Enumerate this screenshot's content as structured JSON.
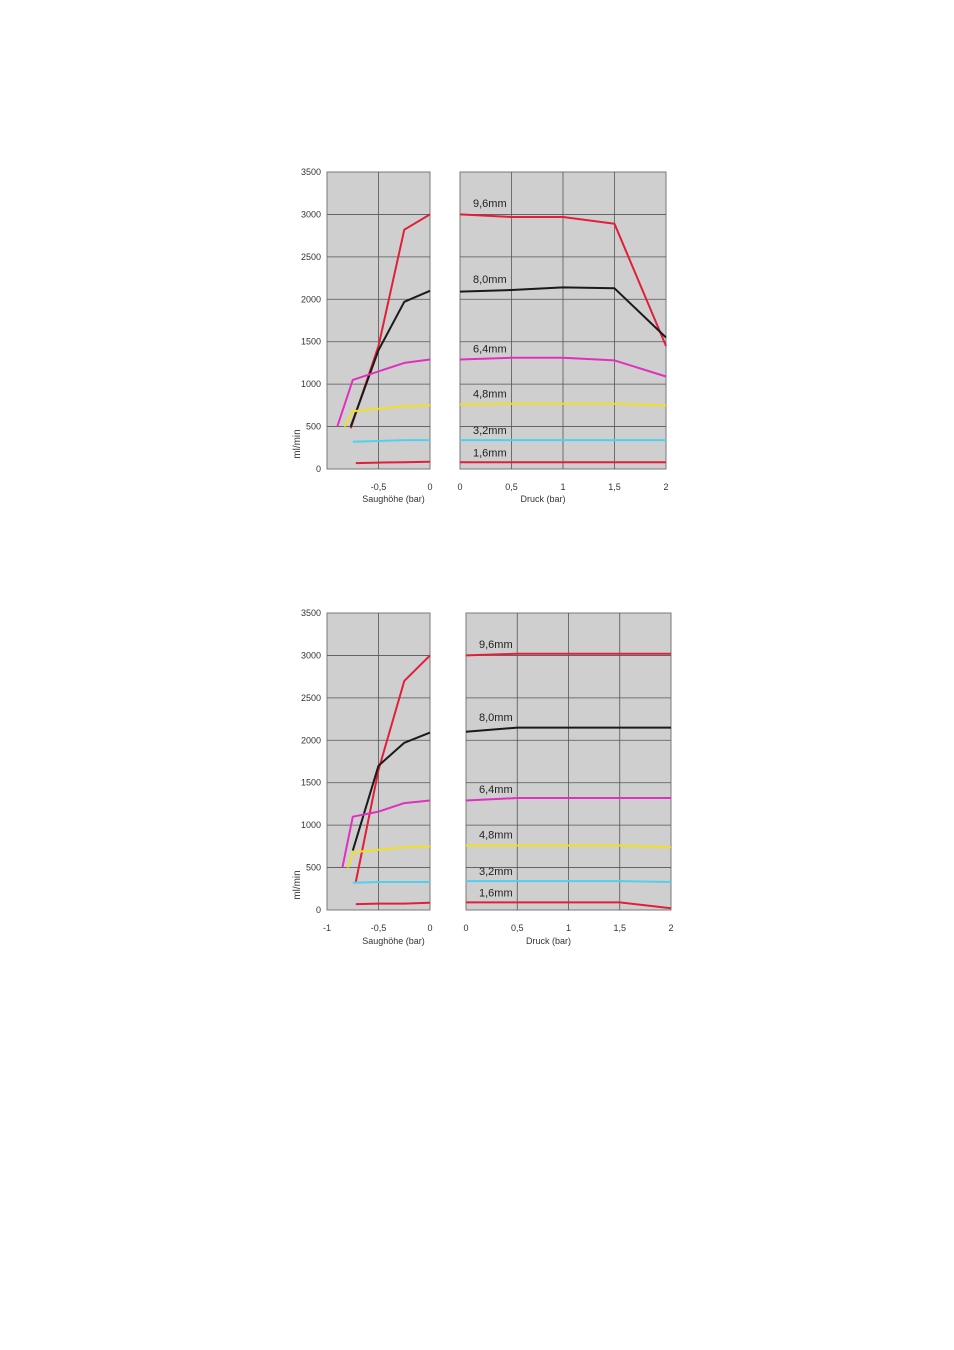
{
  "chart_data": [
    {
      "type": "line",
      "ylabel": "ml/min",
      "ylim": [
        0,
        3500
      ],
      "y_ticks": [
        "0",
        "500",
        "1000",
        "1500",
        "2000",
        "2500",
        "3000",
        "3500"
      ],
      "grid": true,
      "panels": [
        {
          "xlabel": "Saughöhe (bar)",
          "xlim": [
            -1,
            0
          ],
          "x_ticks": [
            {
              "v": -0.5,
              "label": "-0,5"
            },
            {
              "v": 0,
              "label": "0"
            }
          ],
          "series": [
            {
              "color": "#e0203a",
              "points": [
                [
                  -0.77,
                  480
                ],
                [
                  -0.5,
                  1450
                ],
                [
                  -0.25,
                  2820
                ],
                [
                  0,
                  3000
                ]
              ]
            },
            {
              "color": "#1a1a1a",
              "points": [
                [
                  -0.77,
                  500
                ],
                [
                  -0.5,
                  1400
                ],
                [
                  -0.25,
                  1970
                ],
                [
                  0,
                  2100
                ]
              ]
            },
            {
              "color": "#e030c0",
              "points": [
                [
                  -0.9,
                  500
                ],
                [
                  -0.75,
                  1050
                ],
                [
                  -0.5,
                  1150
                ],
                [
                  -0.25,
                  1250
                ],
                [
                  0,
                  1290
                ]
              ]
            },
            {
              "color": "#f0e020",
              "points": [
                [
                  -0.83,
                  500
                ],
                [
                  -0.75,
                  680
                ],
                [
                  -0.5,
                  710
                ],
                [
                  -0.25,
                  740
                ],
                [
                  0,
                  750
                ]
              ]
            },
            {
              "color": "#50d0f0",
              "points": [
                [
                  -0.75,
                  320
                ],
                [
                  -0.5,
                  330
                ],
                [
                  -0.25,
                  340
                ],
                [
                  0,
                  340
                ]
              ]
            },
            {
              "color": "#e0203a",
              "points": [
                [
                  -0.72,
                  70
                ],
                [
                  -0.5,
                  75
                ],
                [
                  -0.25,
                  80
                ],
                [
                  0,
                  85
                ]
              ]
            }
          ]
        },
        {
          "xlabel": "Druck (bar)",
          "xlim": [
            0,
            2
          ],
          "x_ticks": [
            {
              "v": 0,
              "label": "0"
            },
            {
              "v": 0.5,
              "label": "0,5"
            },
            {
              "v": 1,
              "label": "1"
            },
            {
              "v": 1.5,
              "label": "1,5"
            },
            {
              "v": 2,
              "label": "2"
            }
          ],
          "series": [
            {
              "name": "9,6mm",
              "color": "#e0203a",
              "label_y": 3090,
              "points": [
                [
                  0,
                  3000
                ],
                [
                  0.5,
                  2970
                ],
                [
                  1,
                  2970
                ],
                [
                  1.5,
                  2890
                ],
                [
                  2,
                  1450
                ]
              ]
            },
            {
              "name": "8,0mm",
              "color": "#1a1a1a",
              "label_y": 2190,
              "points": [
                [
                  0,
                  2090
                ],
                [
                  0.5,
                  2110
                ],
                [
                  1,
                  2140
                ],
                [
                  1.5,
                  2130
                ],
                [
                  2,
                  1550
                ]
              ]
            },
            {
              "name": "6,4mm",
              "color": "#e030c0",
              "label_y": 1370,
              "points": [
                [
                  0,
                  1290
                ],
                [
                  0.5,
                  1310
                ],
                [
                  1,
                  1310
                ],
                [
                  1.5,
                  1280
                ],
                [
                  2,
                  1090
                ]
              ]
            },
            {
              "name": "4,8mm",
              "color": "#f0e020",
              "label_y": 840,
              "points": [
                [
                  0,
                  760
                ],
                [
                  0.5,
                  770
                ],
                [
                  1,
                  770
                ],
                [
                  1.5,
                  770
                ],
                [
                  2,
                  750
                ]
              ]
            },
            {
              "name": "3,2mm",
              "color": "#50d0f0",
              "label_y": 410,
              "points": [
                [
                  0,
                  340
                ],
                [
                  0.5,
                  340
                ],
                [
                  1,
                  340
                ],
                [
                  1.5,
                  340
                ],
                [
                  2,
                  340
                ]
              ]
            },
            {
              "name": "1,6mm",
              "color": "#e0203a",
              "label_y": 150,
              "points": [
                [
                  0,
                  80
                ],
                [
                  0.5,
                  80
                ],
                [
                  1,
                  80
                ],
                [
                  1.5,
                  80
                ],
                [
                  2,
                  80
                ]
              ]
            }
          ]
        }
      ]
    },
    {
      "type": "line",
      "ylabel": "ml/min",
      "ylim": [
        0,
        3500
      ],
      "y_ticks": [
        "0",
        "500",
        "1000",
        "1500",
        "2000",
        "2500",
        "3000",
        "3500"
      ],
      "grid": true,
      "panels": [
        {
          "xlabel": "Saughöhe (bar)",
          "xlim": [
            -1,
            0
          ],
          "x_ticks": [
            {
              "v": -1,
              "label": "-1"
            },
            {
              "v": -0.5,
              "label": "-0,5"
            },
            {
              "v": 0,
              "label": "0"
            }
          ],
          "series": [
            {
              "color": "#e0203a",
              "points": [
                [
                  -0.72,
                  330
                ],
                [
                  -0.5,
                  1650
                ],
                [
                  -0.25,
                  2700
                ],
                [
                  0,
                  3000
                ]
              ]
            },
            {
              "color": "#1a1a1a",
              "points": [
                [
                  -0.75,
                  700
                ],
                [
                  -0.5,
                  1700
                ],
                [
                  -0.25,
                  1970
                ],
                [
                  0,
                  2090
                ]
              ]
            },
            {
              "color": "#e030c0",
              "points": [
                [
                  -0.85,
                  500
                ],
                [
                  -0.75,
                  1100
                ],
                [
                  -0.5,
                  1160
                ],
                [
                  -0.25,
                  1260
                ],
                [
                  0,
                  1290
                ]
              ]
            },
            {
              "color": "#f0e020",
              "points": [
                [
                  -0.8,
                  500
                ],
                [
                  -0.75,
                  680
                ],
                [
                  -0.5,
                  710
                ],
                [
                  -0.25,
                  740
                ],
                [
                  0,
                  750
                ]
              ]
            },
            {
              "color": "#50d0f0",
              "points": [
                [
                  -0.75,
                  320
                ],
                [
                  -0.5,
                  330
                ],
                [
                  -0.25,
                  330
                ],
                [
                  0,
                  330
                ]
              ]
            },
            {
              "color": "#e0203a",
              "points": [
                [
                  -0.72,
                  70
                ],
                [
                  -0.5,
                  75
                ],
                [
                  -0.25,
                  75
                ],
                [
                  0,
                  85
                ]
              ]
            }
          ]
        },
        {
          "xlabel": "Druck (bar)",
          "xlim": [
            0,
            2
          ],
          "x_ticks": [
            {
              "v": 0,
              "label": "0"
            },
            {
              "v": 0.5,
              "label": "0,5"
            },
            {
              "v": 1,
              "label": "1"
            },
            {
              "v": 1.5,
              "label": "1,5"
            },
            {
              "v": 2,
              "label": "2"
            }
          ],
          "series": [
            {
              "name": "9,6mm",
              "color": "#e0203a",
              "label_y": 3090,
              "points": [
                [
                  0,
                  3000
                ],
                [
                  0.5,
                  3020
                ],
                [
                  1,
                  3020
                ],
                [
                  1.5,
                  3020
                ],
                [
                  2,
                  3020
                ]
              ]
            },
            {
              "name": "8,0mm",
              "color": "#1a1a1a",
              "label_y": 2230,
              "points": [
                [
                  0,
                  2100
                ],
                [
                  0.5,
                  2150
                ],
                [
                  1,
                  2150
                ],
                [
                  1.5,
                  2150
                ],
                [
                  2,
                  2150
                ]
              ]
            },
            {
              "name": "6,4mm",
              "color": "#e030c0",
              "label_y": 1380,
              "points": [
                [
                  0,
                  1290
                ],
                [
                  0.5,
                  1320
                ],
                [
                  1,
                  1320
                ],
                [
                  1.5,
                  1320
                ],
                [
                  2,
                  1320
                ]
              ]
            },
            {
              "name": "4,8mm",
              "color": "#f0e020",
              "label_y": 840,
              "points": [
                [
                  0,
                  760
                ],
                [
                  0.5,
                  760
                ],
                [
                  1,
                  760
                ],
                [
                  1.5,
                  760
                ],
                [
                  2,
                  740
                ]
              ]
            },
            {
              "name": "3,2mm",
              "color": "#50d0f0",
              "label_y": 410,
              "points": [
                [
                  0,
                  340
                ],
                [
                  0.5,
                  340
                ],
                [
                  1,
                  340
                ],
                [
                  1.5,
                  340
                ],
                [
                  2,
                  330
                ]
              ]
            },
            {
              "name": "1,6mm",
              "color": "#e0203a",
              "label_y": 160,
              "points": [
                [
                  0,
                  90
                ],
                [
                  0.5,
                  90
                ],
                [
                  1,
                  90
                ],
                [
                  1.5,
                  90
                ],
                [
                  2,
                  20
                ]
              ]
            }
          ]
        }
      ]
    }
  ]
}
